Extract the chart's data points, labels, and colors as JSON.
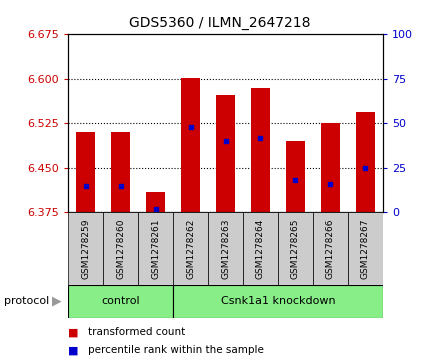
{
  "title": "GDS5360 / ILMN_2647218",
  "samples": [
    "GSM1278259",
    "GSM1278260",
    "GSM1278261",
    "GSM1278262",
    "GSM1278263",
    "GSM1278264",
    "GSM1278265",
    "GSM1278266",
    "GSM1278267"
  ],
  "bar_values": [
    6.51,
    6.51,
    6.41,
    6.601,
    6.573,
    6.585,
    6.495,
    6.525,
    6.545
  ],
  "percentile_values": [
    15,
    15,
    2,
    48,
    40,
    42,
    18,
    16,
    25
  ],
  "baseline": 6.375,
  "ylim_left": [
    6.375,
    6.675
  ],
  "ylim_right": [
    0,
    100
  ],
  "yticks_left": [
    6.375,
    6.45,
    6.525,
    6.6,
    6.675
  ],
  "yticks_right": [
    0,
    25,
    50,
    75,
    100
  ],
  "bar_color": "#cc0000",
  "blue_color": "#0000cc",
  "bg_color": "#ffffff",
  "bar_width": 0.55,
  "control_count": 3,
  "knockdown_count": 6,
  "control_label": "control",
  "knockdown_label": "Csnk1a1 knockdown",
  "protocol_label": "protocol",
  "legend_red": "transformed count",
  "legend_blue": "percentile rank within the sample",
  "group_color": "#88ee88",
  "xtick_bg": "#cccccc",
  "right_axis_color": "#0000cc",
  "left_axis_color": "#cc0000",
  "title_fontsize": 10
}
